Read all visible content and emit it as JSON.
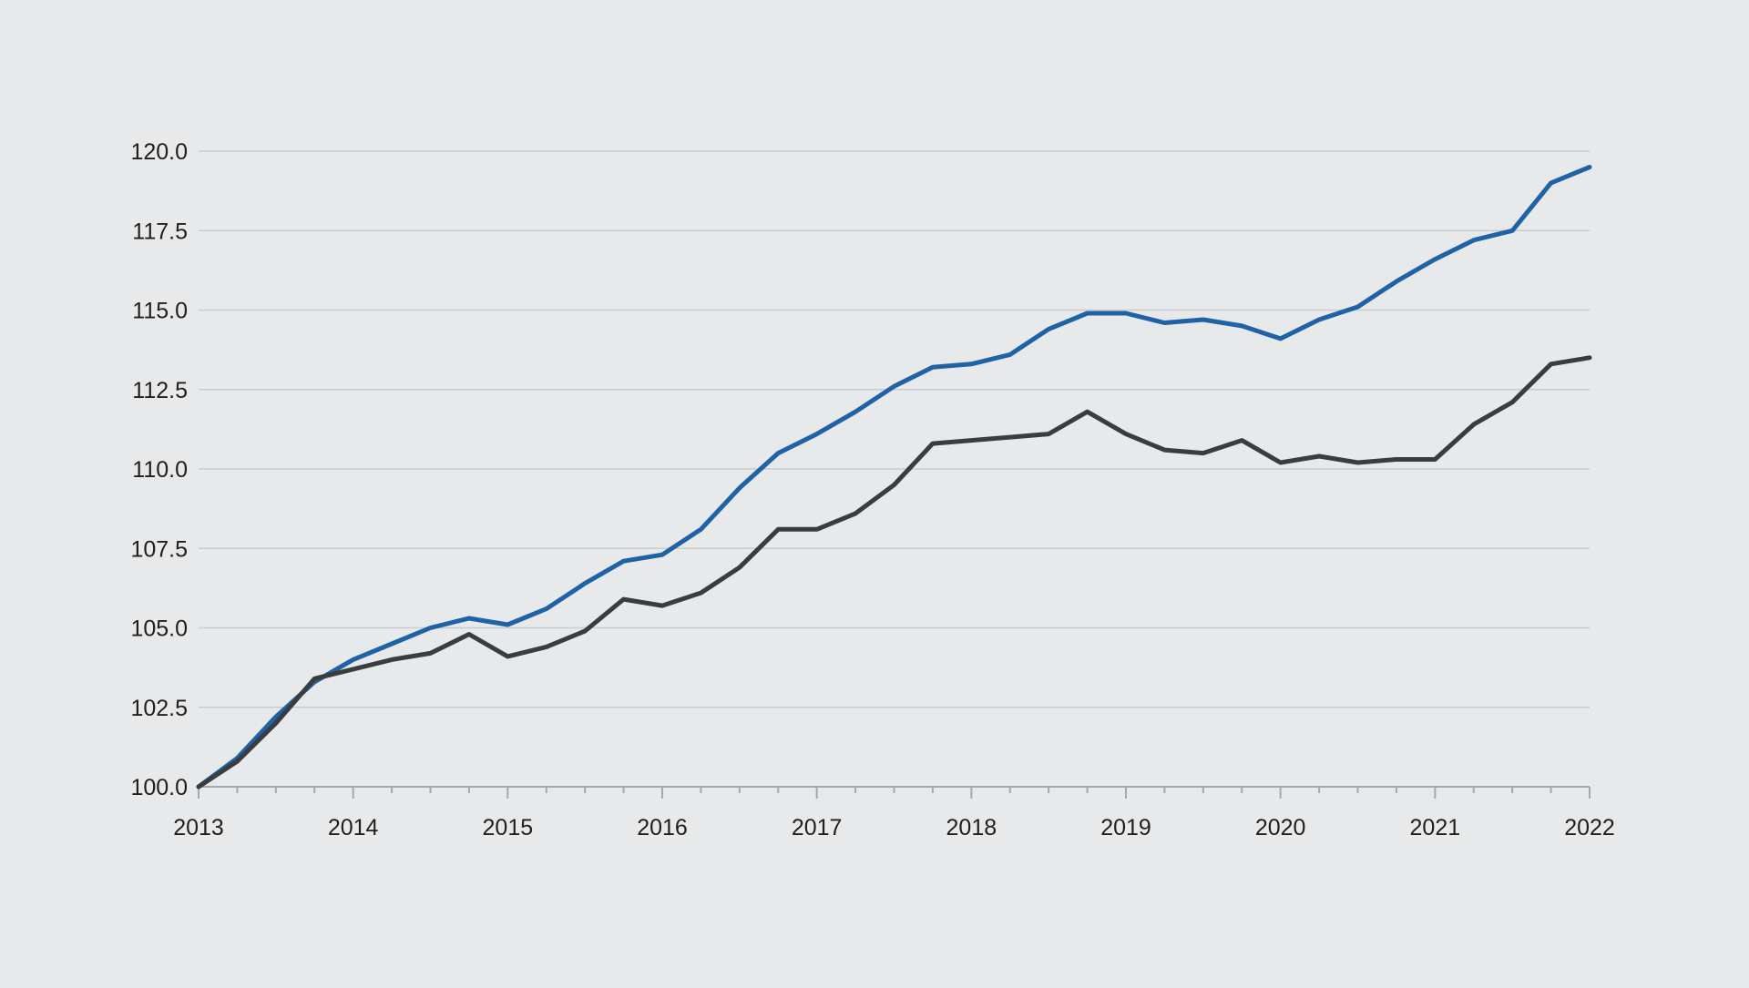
{
  "chart_data": {
    "type": "line",
    "title": "",
    "xlabel": "",
    "ylabel": "",
    "ylim": [
      100,
      120
    ],
    "xlim": [
      2013,
      2022
    ],
    "grid": true,
    "legend": "none",
    "y_ticks": [
      "100.0",
      "102.5",
      "105.0",
      "107.5",
      "110.0",
      "112.5",
      "115.0",
      "117.5",
      "120.0"
    ],
    "x_ticks": [
      "2013",
      "2014",
      "2015",
      "2016",
      "2017",
      "2018",
      "2019",
      "2020",
      "2021",
      "2022"
    ],
    "x": [
      2013.0,
      2013.25,
      2013.5,
      2013.75,
      2014.0,
      2014.25,
      2014.5,
      2014.75,
      2015.0,
      2015.25,
      2015.5,
      2015.75,
      2016.0,
      2016.25,
      2016.5,
      2016.75,
      2017.0,
      2017.25,
      2017.5,
      2017.75,
      2018.0,
      2018.25,
      2018.5,
      2018.75,
      2019.0,
      2019.25,
      2019.5,
      2019.75,
      2020.0,
      2020.25,
      2020.5,
      2020.75,
      2021.0,
      2021.25,
      2021.5,
      2021.75,
      2022.0
    ],
    "series": [
      {
        "color": "#1f63a6",
        "values": [
          100.0,
          100.9,
          102.2,
          103.3,
          104.0,
          104.5,
          105.0,
          105.3,
          105.1,
          105.6,
          106.4,
          107.1,
          107.3,
          108.1,
          109.4,
          110.5,
          111.1,
          111.8,
          112.6,
          113.2,
          113.3,
          113.6,
          114.4,
          114.9,
          114.9,
          114.6,
          114.7,
          114.5,
          114.1,
          114.7,
          115.1,
          115.9,
          116.6,
          117.2,
          117.5,
          119.0,
          119.5
        ]
      },
      {
        "color": "#3a3d40",
        "values": [
          100.0,
          100.8,
          102.0,
          103.4,
          103.7,
          104.0,
          104.2,
          104.8,
          104.1,
          104.4,
          104.9,
          105.9,
          105.7,
          106.1,
          106.9,
          108.1,
          108.1,
          108.6,
          109.5,
          110.8,
          110.9,
          111.0,
          111.1,
          111.8,
          111.1,
          110.6,
          110.5,
          110.9,
          110.2,
          110.4,
          110.2,
          110.3,
          110.3,
          111.4,
          112.1,
          113.3,
          113.5
        ]
      }
    ]
  }
}
